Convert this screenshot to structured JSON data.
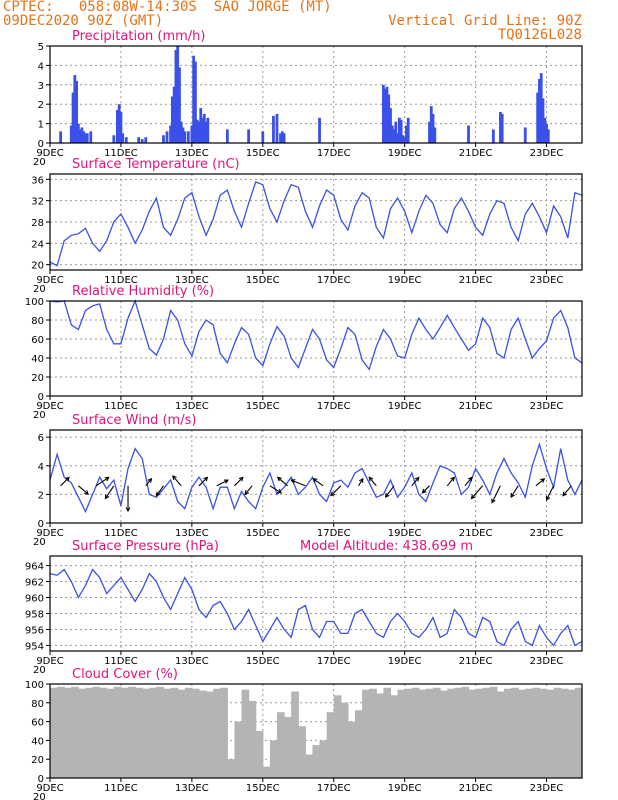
{
  "header": {
    "line1_left": "CPTEC:   058:08W-14:30S  SAO JORGE (MT)",
    "line2_left": "09DEC2020 90Z (GMT)",
    "line1_right": "Vertical Grid Line: 90Z",
    "line2_right": "TQ0126L028"
  },
  "colors": {
    "series": "#3b50e8",
    "title": "#e0147a",
    "header": "#e5731b",
    "cloud": "#b4b4b4"
  },
  "x_axis": {
    "start_day": 9,
    "end_day": 24,
    "tick_days": [
      9,
      11,
      13,
      15,
      17,
      19,
      21,
      23
    ],
    "tick_labels": [
      "9DEC",
      "11DEC",
      "13DEC",
      "15DEC",
      "17DEC",
      "19DEC",
      "21DEC",
      "23DEC"
    ],
    "start_stub": "20"
  },
  "chart_data": [
    {
      "id": "precip",
      "type": "bar",
      "title": "Precipitation (mm/h)",
      "ylim": [
        0,
        5
      ],
      "yticks": [
        0,
        1,
        2,
        3,
        4,
        5
      ],
      "x": [
        9.3,
        9.6,
        9.65,
        9.7,
        9.75,
        9.8,
        9.85,
        9.9,
        9.95,
        10.0,
        10.05,
        10.15,
        10.8,
        10.9,
        10.95,
        11.0,
        11.05,
        11.15,
        11.5,
        11.6,
        11.7,
        12.2,
        12.3,
        12.4,
        12.45,
        12.5,
        12.55,
        12.6,
        12.65,
        12.7,
        12.75,
        12.8,
        12.9,
        13.0,
        13.05,
        13.1,
        13.15,
        13.2,
        13.25,
        13.3,
        13.35,
        13.4,
        13.45,
        14.0,
        14.6,
        15.0,
        15.3,
        15.4,
        15.5,
        15.55,
        15.6,
        16.6,
        18.4,
        18.45,
        18.5,
        18.55,
        18.6,
        18.65,
        18.7,
        18.75,
        18.8,
        18.85,
        18.9,
        18.95,
        19.0,
        19.05,
        19.1,
        19.7,
        19.75,
        19.8,
        19.85,
        20.8,
        21.5,
        21.7,
        21.75,
        22.4,
        22.75,
        22.8,
        22.85,
        22.9,
        22.95,
        23.0,
        23.05
      ],
      "values": [
        0.6,
        0.9,
        2.6,
        3.5,
        3.2,
        1.0,
        0.7,
        0.8,
        0.6,
        0.5,
        0.5,
        0.6,
        0.4,
        1.7,
        2.0,
        1.6,
        0.5,
        0.3,
        0.3,
        0.2,
        0.3,
        0.4,
        0.6,
        0.9,
        2.4,
        2.9,
        4.8,
        5.0,
        3.9,
        1.1,
        0.8,
        0.6,
        0.6,
        0.9,
        4.5,
        4.2,
        1.2,
        1.1,
        1.8,
        1.3,
        1.5,
        1.1,
        1.3,
        0.7,
        0.7,
        0.6,
        1.4,
        1.5,
        0.5,
        0.6,
        0.5,
        1.3,
        3.0,
        2.8,
        2.9,
        2.5,
        1.8,
        0.9,
        0.7,
        1.1,
        0.5,
        1.3,
        1.2,
        0.4,
        0.3,
        0.9,
        1.3,
        1.1,
        1.9,
        1.5,
        0.8,
        0.9,
        0.7,
        1.6,
        1.5,
        0.8,
        2.6,
        3.3,
        3.6,
        2.3,
        1.3,
        1.0,
        0.7
      ]
    },
    {
      "id": "temp",
      "type": "line",
      "title": "Surface Temperature (nC)",
      "ylim": [
        19,
        37
      ],
      "yticks": [
        20,
        24,
        28,
        32,
        36
      ],
      "x": [
        9.0,
        9.2,
        9.4,
        9.6,
        9.8,
        10.0,
        10.2,
        10.4,
        10.6,
        10.8,
        11.0,
        11.2,
        11.4,
        11.6,
        11.8,
        12.0,
        12.2,
        12.4,
        12.6,
        12.8,
        13.0,
        13.2,
        13.4,
        13.6,
        13.8,
        14.0,
        14.2,
        14.4,
        14.6,
        14.8,
        15.0,
        15.2,
        15.4,
        15.6,
        15.8,
        16.0,
        16.2,
        16.4,
        16.6,
        16.8,
        17.0,
        17.2,
        17.4,
        17.6,
        17.8,
        18.0,
        18.2,
        18.4,
        18.6,
        18.8,
        19.0,
        19.2,
        19.4,
        19.6,
        19.8,
        20.0,
        20.2,
        20.4,
        20.6,
        20.8,
        21.0,
        21.2,
        21.4,
        21.6,
        21.8,
        22.0,
        22.2,
        22.4,
        22.6,
        22.8,
        23.0,
        23.2,
        23.4,
        23.6,
        23.8,
        24.0
      ],
      "values": [
        20.5,
        19.8,
        24.5,
        25.5,
        25.8,
        26.8,
        24.0,
        22.5,
        24.5,
        28.0,
        29.5,
        27.0,
        24.0,
        26.5,
        30.0,
        32.5,
        27.0,
        25.5,
        28.5,
        32.5,
        33.5,
        29.0,
        25.5,
        28.5,
        33.0,
        34.0,
        30.0,
        27.0,
        31.5,
        35.5,
        35.0,
        30.5,
        28.0,
        32.0,
        35.0,
        34.5,
        30.0,
        27.0,
        31.0,
        34.0,
        33.0,
        28.5,
        26.5,
        31.0,
        33.5,
        32.5,
        27.0,
        25.0,
        30.5,
        32.5,
        30.0,
        26.0,
        30.0,
        33.0,
        31.5,
        27.5,
        26.0,
        30.5,
        32.5,
        30.0,
        27.0,
        25.5,
        29.5,
        32.0,
        31.5,
        27.0,
        24.5,
        29.5,
        31.5,
        29.0,
        26.0,
        31.0,
        29.0,
        25.0,
        33.5,
        33.0
      ]
    },
    {
      "id": "rh",
      "type": "line",
      "title": "Relative Humidity (%)",
      "ylim": [
        0,
        100
      ],
      "yticks": [
        0,
        20,
        40,
        60,
        80,
        100
      ],
      "x": [
        9.0,
        9.2,
        9.4,
        9.6,
        9.8,
        10.0,
        10.2,
        10.4,
        10.6,
        10.8,
        11.0,
        11.2,
        11.4,
        11.6,
        11.8,
        12.0,
        12.2,
        12.4,
        12.6,
        12.8,
        13.0,
        13.2,
        13.4,
        13.6,
        13.8,
        14.0,
        14.2,
        14.4,
        14.6,
        14.8,
        15.0,
        15.2,
        15.4,
        15.6,
        15.8,
        16.0,
        16.2,
        16.4,
        16.6,
        16.8,
        17.0,
        17.2,
        17.4,
        17.6,
        17.8,
        18.0,
        18.2,
        18.4,
        18.6,
        18.8,
        19.0,
        19.2,
        19.4,
        19.6,
        19.8,
        20.0,
        20.2,
        20.4,
        20.6,
        20.8,
        21.0,
        21.2,
        21.4,
        21.6,
        21.8,
        22.0,
        22.2,
        22.4,
        22.6,
        22.8,
        23.0,
        23.2,
        23.4,
        23.6,
        23.8,
        24.0
      ],
      "values": [
        100,
        99,
        100,
        75,
        70,
        90,
        95,
        97,
        70,
        55,
        55,
        82,
        100,
        75,
        50,
        43,
        60,
        90,
        80,
        55,
        42,
        68,
        80,
        75,
        45,
        35,
        55,
        72,
        65,
        40,
        32,
        55,
        73,
        63,
        40,
        30,
        50,
        70,
        60,
        38,
        30,
        50,
        72,
        65,
        38,
        28,
        52,
        70,
        60,
        42,
        40,
        65,
        82,
        70,
        60,
        72,
        85,
        72,
        60,
        48,
        55,
        82,
        72,
        45,
        40,
        70,
        82,
        60,
        40,
        50,
        58,
        82,
        90,
        72,
        40,
        35
      ]
    },
    {
      "id": "wind",
      "type": "line",
      "title": "Surface Wind (m/s)",
      "ylim": [
        0,
        6.5
      ],
      "yticks": [
        0,
        2,
        4,
        6
      ],
      "x": [
        9.0,
        9.2,
        9.4,
        9.6,
        9.8,
        10.0,
        10.2,
        10.4,
        10.6,
        10.8,
        11.0,
        11.2,
        11.4,
        11.6,
        11.8,
        12.0,
        12.2,
        12.4,
        12.6,
        12.8,
        13.0,
        13.2,
        13.4,
        13.6,
        13.8,
        14.0,
        14.2,
        14.4,
        14.6,
        14.8,
        15.0,
        15.2,
        15.4,
        15.6,
        15.8,
        16.0,
        16.2,
        16.4,
        16.6,
        16.8,
        17.0,
        17.2,
        17.4,
        17.6,
        17.8,
        18.0,
        18.2,
        18.4,
        18.6,
        18.8,
        19.0,
        19.2,
        19.4,
        19.6,
        19.8,
        20.0,
        20.2,
        20.4,
        20.6,
        20.8,
        21.0,
        21.2,
        21.4,
        21.6,
        21.8,
        22.0,
        22.2,
        22.4,
        22.6,
        22.8,
        23.0,
        23.2,
        23.4,
        23.6,
        23.8,
        24.0
      ],
      "values": [
        3.0,
        4.8,
        3.2,
        2.8,
        1.8,
        0.8,
        2.0,
        3.2,
        2.4,
        3.0,
        1.2,
        3.8,
        5.2,
        4.5,
        2.0,
        1.8,
        2.4,
        3.0,
        1.5,
        1.0,
        2.5,
        3.2,
        2.5,
        1.0,
        2.5,
        2.5,
        1.0,
        2.2,
        1.5,
        1.0,
        2.5,
        3.5,
        2.0,
        2.5,
        3.2,
        2.0,
        2.5,
        3.2,
        2.0,
        1.5,
        2.8,
        3.0,
        2.5,
        3.5,
        3.8,
        2.8,
        1.8,
        2.0,
        3.0,
        1.8,
        2.5,
        3.5,
        2.0,
        1.5,
        2.8,
        4.0,
        3.8,
        3.5,
        2.0,
        2.5,
        3.8,
        3.0,
        2.0,
        3.5,
        4.5,
        3.5,
        2.8,
        1.8,
        4.0,
        5.5,
        3.8,
        2.5,
        5.2,
        3.0,
        2.0,
        3.0
      ],
      "arrows": {
        "x": [
          9.3,
          9.8,
          10.3,
          10.8,
          11.2,
          11.7,
          12.2,
          12.7,
          13.2,
          13.7,
          14.2,
          14.7,
          15.2,
          15.7,
          16.2,
          16.7,
          17.2,
          17.7,
          18.2,
          18.7,
          19.2,
          19.7,
          20.2,
          20.7,
          21.2,
          21.7,
          22.2,
          22.7,
          23.2,
          23.7
        ],
        "u": [
          0.6,
          0.7,
          0.9,
          -0.6,
          0.0,
          0.4,
          -0.5,
          -0.6,
          0.6,
          0.8,
          0.6,
          -0.5,
          0.8,
          -0.7,
          -1.0,
          -0.7,
          -0.7,
          0.3,
          -0.5,
          -0.6,
          0.5,
          -0.5,
          0.5,
          0.5,
          -0.8,
          -0.6,
          -0.5,
          0.6,
          -0.5,
          -0.6
        ],
        "v": [
          0.6,
          -0.6,
          0.6,
          -0.9,
          -1.8,
          0.5,
          -0.7,
          0.7,
          0.6,
          0.4,
          0.6,
          -0.6,
          -0.5,
          0.6,
          0.4,
          0.5,
          -0.7,
          0.5,
          0.6,
          -0.8,
          0.6,
          -0.5,
          0.6,
          0.6,
          -0.9,
          -1.2,
          -0.8,
          0.5,
          -1.0,
          -0.7
        ]
      }
    },
    {
      "id": "pres",
      "type": "line",
      "title": "Surface Pressure (hPa)",
      "annotation": "Model Altitude: 438.699  m",
      "ylim": [
        953.3,
        965.2
      ],
      "yticks": [
        954,
        956,
        958,
        960,
        962,
        964
      ],
      "x": [
        9.0,
        9.2,
        9.4,
        9.6,
        9.8,
        10.0,
        10.2,
        10.4,
        10.6,
        10.8,
        11.0,
        11.2,
        11.4,
        11.6,
        11.8,
        12.0,
        12.2,
        12.4,
        12.6,
        12.8,
        13.0,
        13.2,
        13.4,
        13.6,
        13.8,
        14.0,
        14.2,
        14.4,
        14.6,
        14.8,
        15.0,
        15.2,
        15.4,
        15.6,
        15.8,
        16.0,
        16.2,
        16.4,
        16.6,
        16.8,
        17.0,
        17.2,
        17.4,
        17.6,
        17.8,
        18.0,
        18.2,
        18.4,
        18.6,
        18.8,
        19.0,
        19.2,
        19.4,
        19.6,
        19.8,
        20.0,
        20.2,
        20.4,
        20.6,
        20.8,
        21.0,
        21.2,
        21.4,
        21.6,
        21.8,
        22.0,
        22.2,
        22.4,
        22.6,
        22.8,
        23.0,
        23.2,
        23.4,
        23.6,
        23.8,
        24.0
      ],
      "values": [
        963.0,
        962.8,
        963.5,
        962.0,
        960.0,
        961.5,
        963.5,
        962.5,
        960.5,
        961.5,
        962.5,
        961.0,
        959.5,
        961.0,
        963.0,
        962.0,
        960.0,
        958.5,
        960.5,
        962.5,
        961.0,
        958.5,
        957.5,
        959.0,
        959.5,
        958.0,
        956.0,
        957.0,
        958.5,
        956.5,
        954.5,
        956.0,
        957.5,
        956.0,
        955.0,
        958.5,
        959.0,
        956.0,
        955.0,
        957.0,
        957.0,
        955.5,
        955.5,
        958.0,
        958.5,
        957.0,
        955.5,
        955.0,
        957.0,
        958.0,
        957.0,
        955.5,
        955.0,
        956.0,
        957.5,
        955.0,
        955.5,
        958.5,
        957.5,
        955.5,
        955.0,
        957.5,
        957.0,
        954.5,
        954.0,
        956.0,
        957.0,
        954.5,
        954.0,
        956.5,
        955.0,
        954.0,
        955.5,
        956.5,
        954.0,
        954.5
      ]
    },
    {
      "id": "cloud",
      "type": "bar",
      "title": "Cloud Cover (%)",
      "ylim": [
        0,
        100
      ],
      "yticks": [
        0,
        20,
        40,
        60,
        80,
        100
      ],
      "x": [
        9.0,
        9.2,
        9.4,
        9.6,
        9.8,
        10.0,
        10.2,
        10.4,
        10.6,
        10.8,
        11.0,
        11.2,
        11.4,
        11.6,
        11.8,
        12.0,
        12.2,
        12.4,
        12.6,
        12.8,
        13.0,
        13.2,
        13.4,
        13.6,
        13.8,
        14.0,
        14.2,
        14.4,
        14.6,
        14.8,
        15.0,
        15.2,
        15.4,
        15.6,
        15.8,
        16.0,
        16.2,
        16.4,
        16.6,
        16.8,
        17.0,
        17.2,
        17.4,
        17.6,
        17.8,
        18.0,
        18.2,
        18.4,
        18.6,
        18.8,
        19.0,
        19.2,
        19.4,
        19.6,
        19.8,
        20.0,
        20.2,
        20.4,
        20.6,
        20.8,
        21.0,
        21.2,
        21.4,
        21.6,
        21.8,
        22.0,
        22.2,
        22.4,
        22.6,
        22.8,
        23.0,
        23.2,
        23.4,
        23.6,
        23.8
      ],
      "values": [
        96,
        97,
        96,
        97,
        95,
        96,
        97,
        96,
        95,
        97,
        96,
        97,
        96,
        95,
        96,
        97,
        95,
        96,
        94,
        96,
        95,
        93,
        92,
        95,
        96,
        20,
        60,
        94,
        82,
        50,
        12,
        40,
        70,
        65,
        92,
        55,
        25,
        35,
        40,
        70,
        88,
        80,
        60,
        72,
        94,
        95,
        90,
        96,
        88,
        94,
        95,
        96,
        94,
        95,
        96,
        93,
        95,
        96,
        97,
        94,
        95,
        96,
        97,
        92,
        95,
        96,
        94,
        95,
        96,
        95,
        94,
        96,
        95,
        94,
        96
      ]
    }
  ]
}
